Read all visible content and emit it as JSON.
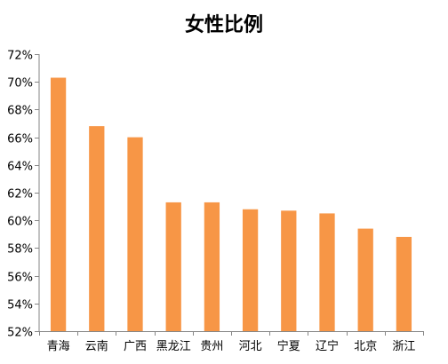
{
  "chart_data": {
    "type": "bar",
    "title": "女性比例",
    "xlabel": "",
    "ylabel": "",
    "categories": [
      "青海",
      "云南",
      "广西",
      "黑龙江",
      "贵州",
      "河北",
      "宁夏",
      "辽宁",
      "北京",
      "浙江"
    ],
    "values": [
      70.3,
      66.8,
      66.0,
      61.3,
      61.3,
      60.8,
      60.7,
      60.5,
      59.4,
      58.8
    ],
    "ylim": [
      52,
      72
    ],
    "yticks": [
      52,
      54,
      56,
      58,
      60,
      62,
      64,
      66,
      68,
      70,
      72
    ],
    "ytick_format": "percent",
    "grid": false,
    "legend": "none",
    "bar_color": "#F79646"
  }
}
